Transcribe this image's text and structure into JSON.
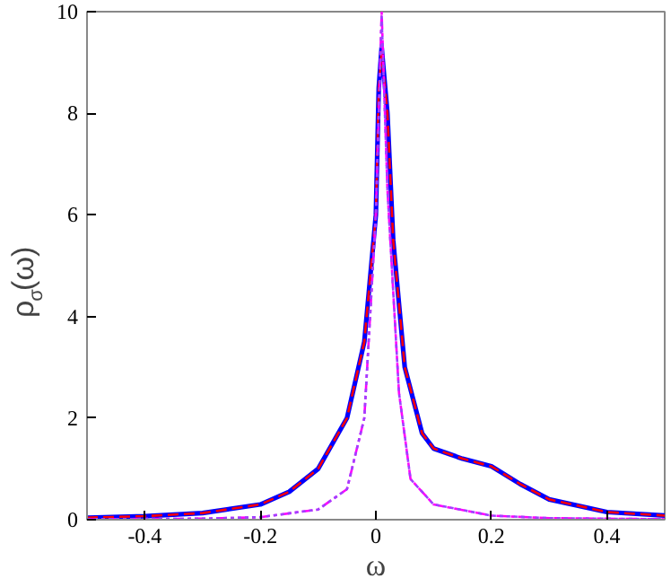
{
  "chart_data": {
    "type": "line",
    "xlabel": "ω",
    "ylabel": "ρ$_{σ}$(ω)",
    "xlim": [
      -0.5,
      0.5
    ],
    "ylim": [
      0,
      10
    ],
    "xticks": [
      -0.4,
      -0.2,
      0,
      0.2,
      0.4
    ],
    "yticks": [
      0,
      2,
      4,
      6,
      8,
      10
    ],
    "grid": false,
    "marker": "none",
    "series": [
      {
        "color": "#0000ff",
        "line_style": "solid",
        "x": [
          -0.5,
          -0.4,
          -0.3,
          -0.2,
          -0.15,
          -0.1,
          -0.05,
          -0.02,
          0,
          0.005,
          0.01,
          0.02,
          0.03,
          0.05,
          0.08,
          0.1,
          0.15,
          0.2,
          0.25,
          0.3,
          0.4,
          0.5
        ],
        "values": [
          0.04,
          0.07,
          0.13,
          0.3,
          0.55,
          1.0,
          2.0,
          3.5,
          6.0,
          8.5,
          9.3,
          8.0,
          5.5,
          3.0,
          1.7,
          1.4,
          1.2,
          1.05,
          0.7,
          0.4,
          0.15,
          0.08
        ]
      },
      {
        "color": "#ff0000",
        "line_style": "dashed",
        "x": [
          -0.5,
          -0.4,
          -0.3,
          -0.2,
          -0.15,
          -0.1,
          -0.05,
          -0.02,
          0,
          0.005,
          0.01,
          0.02,
          0.03,
          0.05,
          0.08,
          0.1,
          0.15,
          0.2,
          0.25,
          0.3,
          0.4,
          0.5
        ],
        "values": [
          0.04,
          0.07,
          0.13,
          0.3,
          0.55,
          1.0,
          2.0,
          3.5,
          6.0,
          8.5,
          9.2,
          8.0,
          5.5,
          3.0,
          1.7,
          1.4,
          1.2,
          1.05,
          0.7,
          0.4,
          0.15,
          0.08
        ]
      },
      {
        "color": "#ff00ff",
        "line_style": "dashdot",
        "x": [
          -0.5,
          -0.3,
          -0.2,
          -0.1,
          -0.05,
          -0.02,
          0,
          0.01,
          0.02,
          0.04,
          0.06,
          0.1,
          0.2,
          0.3,
          0.5
        ],
        "values": [
          0.01,
          0.02,
          0.05,
          0.2,
          0.6,
          2.0,
          6.0,
          10.0,
          6.5,
          2.5,
          0.8,
          0.3,
          0.08,
          0.03,
          0.01
        ]
      },
      {
        "color": "#a040ff",
        "line_style": "dotted",
        "x": [
          -0.5,
          -0.3,
          -0.2,
          -0.1,
          -0.05,
          -0.02,
          0,
          0.01,
          0.02,
          0.04,
          0.06,
          0.1,
          0.2,
          0.3,
          0.5
        ],
        "values": [
          0.01,
          0.02,
          0.05,
          0.2,
          0.6,
          2.0,
          6.0,
          9.9,
          6.5,
          2.5,
          0.8,
          0.3,
          0.08,
          0.03,
          0.01
        ]
      }
    ]
  }
}
